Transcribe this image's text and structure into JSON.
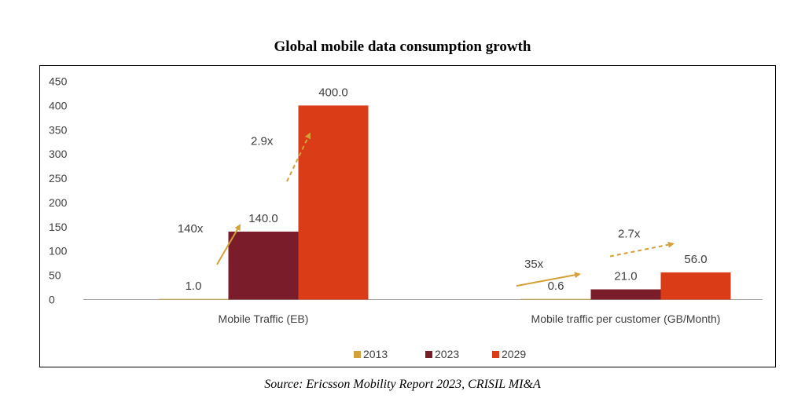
{
  "chart_data": {
    "type": "bar",
    "title": "Global mobile data consumption growth",
    "categories": [
      "Mobile Traffic (EB)",
      "Mobile traffic per customer (GB/Month)"
    ],
    "series": [
      {
        "name": "2013",
        "color": "#d4a03a",
        "values": [
          1.0,
          0.6
        ],
        "labels": [
          "1.0",
          "0.6"
        ]
      },
      {
        "name": "2023",
        "color": "#7b1c2b",
        "values": [
          140.0,
          21.0
        ],
        "labels": [
          "140.0",
          "21.0"
        ]
      },
      {
        "name": "2029",
        "color": "#d93c17",
        "values": [
          400.0,
          56.0
        ],
        "labels": [
          "400.0",
          "56.0"
        ]
      }
    ],
    "ylim": [
      0,
      450
    ],
    "yticks": [
      "0",
      "50",
      "100",
      "150",
      "200",
      "250",
      "300",
      "350",
      "400",
      "450"
    ],
    "growth_annotations": [
      {
        "label": "140x",
        "category": 0,
        "from_series": "2013",
        "to_series": "2023",
        "style": "solid"
      },
      {
        "label": "2.9x",
        "category": 0,
        "from_series": "2023",
        "to_series": "2029",
        "style": "dashed"
      },
      {
        "label": "35x",
        "category": 1,
        "from_series": "2013",
        "to_series": "2023",
        "style": "solid"
      },
      {
        "label": "2.7x",
        "category": 1,
        "from_series": "2023",
        "to_series": "2029",
        "style": "dashed"
      }
    ],
    "arrow_color": "#d4a03a",
    "legend_position": "bottom-center"
  },
  "source": "Source: Ericsson Mobility Report 2023, CRISIL MI&A"
}
